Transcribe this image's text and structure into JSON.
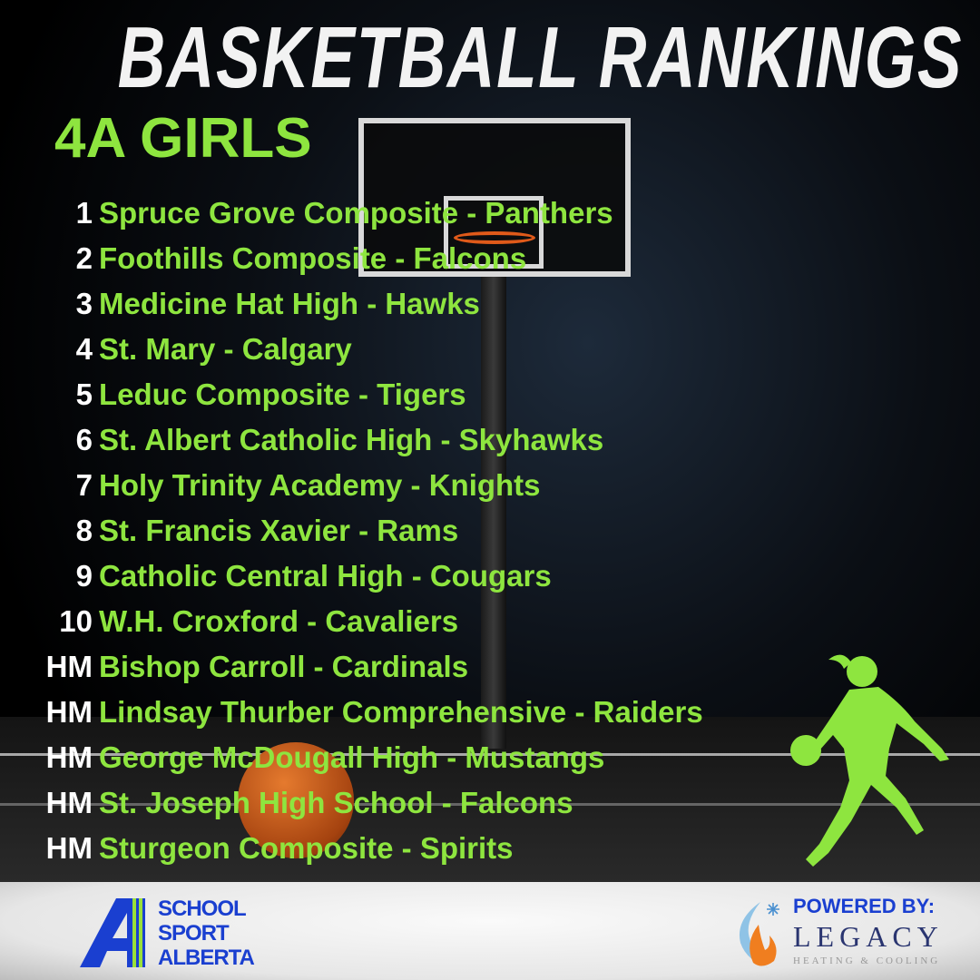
{
  "header": {
    "title": "BASKETBALL RANKINGS",
    "subtitle": "4A GIRLS"
  },
  "colors": {
    "accent_green": "#8ee53f",
    "rank_white": "#ffffff",
    "brand_blue": "#1a3fd0"
  },
  "rankings": [
    {
      "rank": "1",
      "team": "Spruce Grove Composite - Panthers"
    },
    {
      "rank": "2",
      "team": "Foothills Composite - Falcons"
    },
    {
      "rank": "3",
      "team": "Medicine Hat High - Hawks"
    },
    {
      "rank": "4",
      "team": "St. Mary - Calgary"
    },
    {
      "rank": "5",
      "team": "Leduc Composite - Tigers"
    },
    {
      "rank": "6",
      "team": "St. Albert Catholic High - Skyhawks"
    },
    {
      "rank": "7",
      "team": "Holy Trinity Academy - Knights"
    },
    {
      "rank": "8",
      "team": "St. Francis Xavier - Rams"
    },
    {
      "rank": "9",
      "team": "Catholic Central High - Cougars"
    },
    {
      "rank": "10",
      "team": "W.H. Croxford - Cavaliers"
    },
    {
      "rank": "HM",
      "team": "Bishop Carroll - Cardinals"
    },
    {
      "rank": "HM",
      "team": "Lindsay Thurber Comprehensive - Raiders"
    },
    {
      "rank": "HM",
      "team": "George McDougall High - Mustangs"
    },
    {
      "rank": "HM",
      "team": "St. Joseph High School - Falcons"
    },
    {
      "rank": "HM",
      "team": "Sturgeon Composite - Spirits"
    }
  ],
  "footer": {
    "left_logo": {
      "lines": [
        "SCHOOL",
        "SPORT",
        "ALBERTA"
      ]
    },
    "right_logo": {
      "powered_by": "POWERED BY:",
      "name": "LEGACY",
      "tagline": "HEATING & COOLING"
    }
  }
}
